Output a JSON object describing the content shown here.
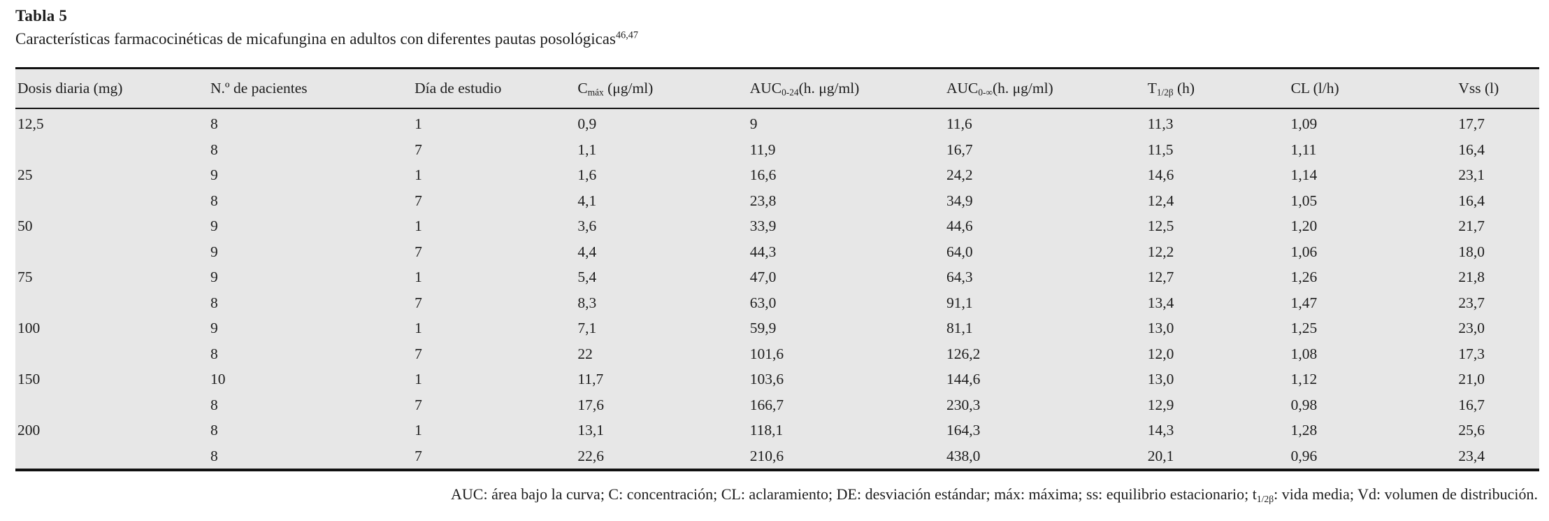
{
  "page": {
    "background_color": "#ffffff",
    "table_background_color": "#e7e7e7",
    "border_color": "#111111",
    "text_color": "#1d1d1d"
  },
  "caption": {
    "label": "Tabla 5",
    "title": "Características farmacocinéticas de micafungina en adultos con diferentes pautas posológicas",
    "citation_superscript": "46,47"
  },
  "table": {
    "columns": [
      {
        "pre": "Dosis diaria (mg)",
        "sub": "",
        "post": ""
      },
      {
        "pre": "N.º de pacientes",
        "sub": "",
        "post": ""
      },
      {
        "pre": "Día de estudio",
        "sub": "",
        "post": ""
      },
      {
        "pre": "C",
        "sub": "máx",
        "post": " (μg/ml)"
      },
      {
        "pre": "AUC",
        "sub": "0-24",
        "post": "(h. μg/ml)"
      },
      {
        "pre": "AUC",
        "sub": "0-∞",
        "post": "(h. μg/ml)"
      },
      {
        "pre": "T",
        "sub": "1/2β",
        "post": " (h)"
      },
      {
        "pre": "CL (l/h)",
        "sub": "",
        "post": ""
      },
      {
        "pre": "Vss (l)",
        "sub": "",
        "post": ""
      }
    ],
    "rows": [
      [
        "12,5",
        "8",
        "1",
        "0,9",
        "9",
        "11,6",
        "11,3",
        "1,09",
        "17,7"
      ],
      [
        "",
        "8",
        "7",
        "1,1",
        "11,9",
        "16,7",
        "11,5",
        "1,11",
        "16,4"
      ],
      [
        "25",
        "9",
        "1",
        "1,6",
        "16,6",
        "24,2",
        "14,6",
        "1,14",
        "23,1"
      ],
      [
        "",
        "8",
        "7",
        "4,1",
        "23,8",
        "34,9",
        "12,4",
        "1,05",
        "16,4"
      ],
      [
        "50",
        "9",
        "1",
        "3,6",
        "33,9",
        "44,6",
        "12,5",
        "1,20",
        "21,7"
      ],
      [
        "",
        "9",
        "7",
        "4,4",
        "44,3",
        "64,0",
        "12,2",
        "1,06",
        "18,0"
      ],
      [
        "75",
        "9",
        "1",
        "5,4",
        "47,0",
        "64,3",
        "12,7",
        "1,26",
        "21,8"
      ],
      [
        "",
        "8",
        "7",
        "8,3",
        "63,0",
        "91,1",
        "13,4",
        "1,47",
        "23,7"
      ],
      [
        "100",
        "9",
        "1",
        "7,1",
        "59,9",
        "81,1",
        "13,0",
        "1,25",
        "23,0"
      ],
      [
        "",
        "8",
        "7",
        "22",
        "101,6",
        "126,2",
        "12,0",
        "1,08",
        "17,3"
      ],
      [
        "150",
        "10",
        "1",
        "11,7",
        "103,6",
        "144,6",
        "13,0",
        "1,12",
        "21,0"
      ],
      [
        "",
        "8",
        "7",
        "17,6",
        "166,7",
        "230,3",
        "12,9",
        "0,98",
        "16,7"
      ],
      [
        "200",
        "8",
        "1",
        "13,1",
        "118,1",
        "164,3",
        "14,3",
        "1,28",
        "25,6"
      ],
      [
        "",
        "8",
        "7",
        "22,6",
        "210,6",
        "438,0",
        "20,1",
        "0,96",
        "23,4"
      ]
    ]
  },
  "footnote": {
    "parts": [
      {
        "text": "AUC: área bajo la curva; C: concentración; CL: aclaramiento; DE: desviación estándar; máx: máxima; ss: equilibrio estacionario; t"
      },
      {
        "sub": "1/2β"
      },
      {
        "text": ": vida media; Vd: volumen de distribución."
      }
    ]
  }
}
